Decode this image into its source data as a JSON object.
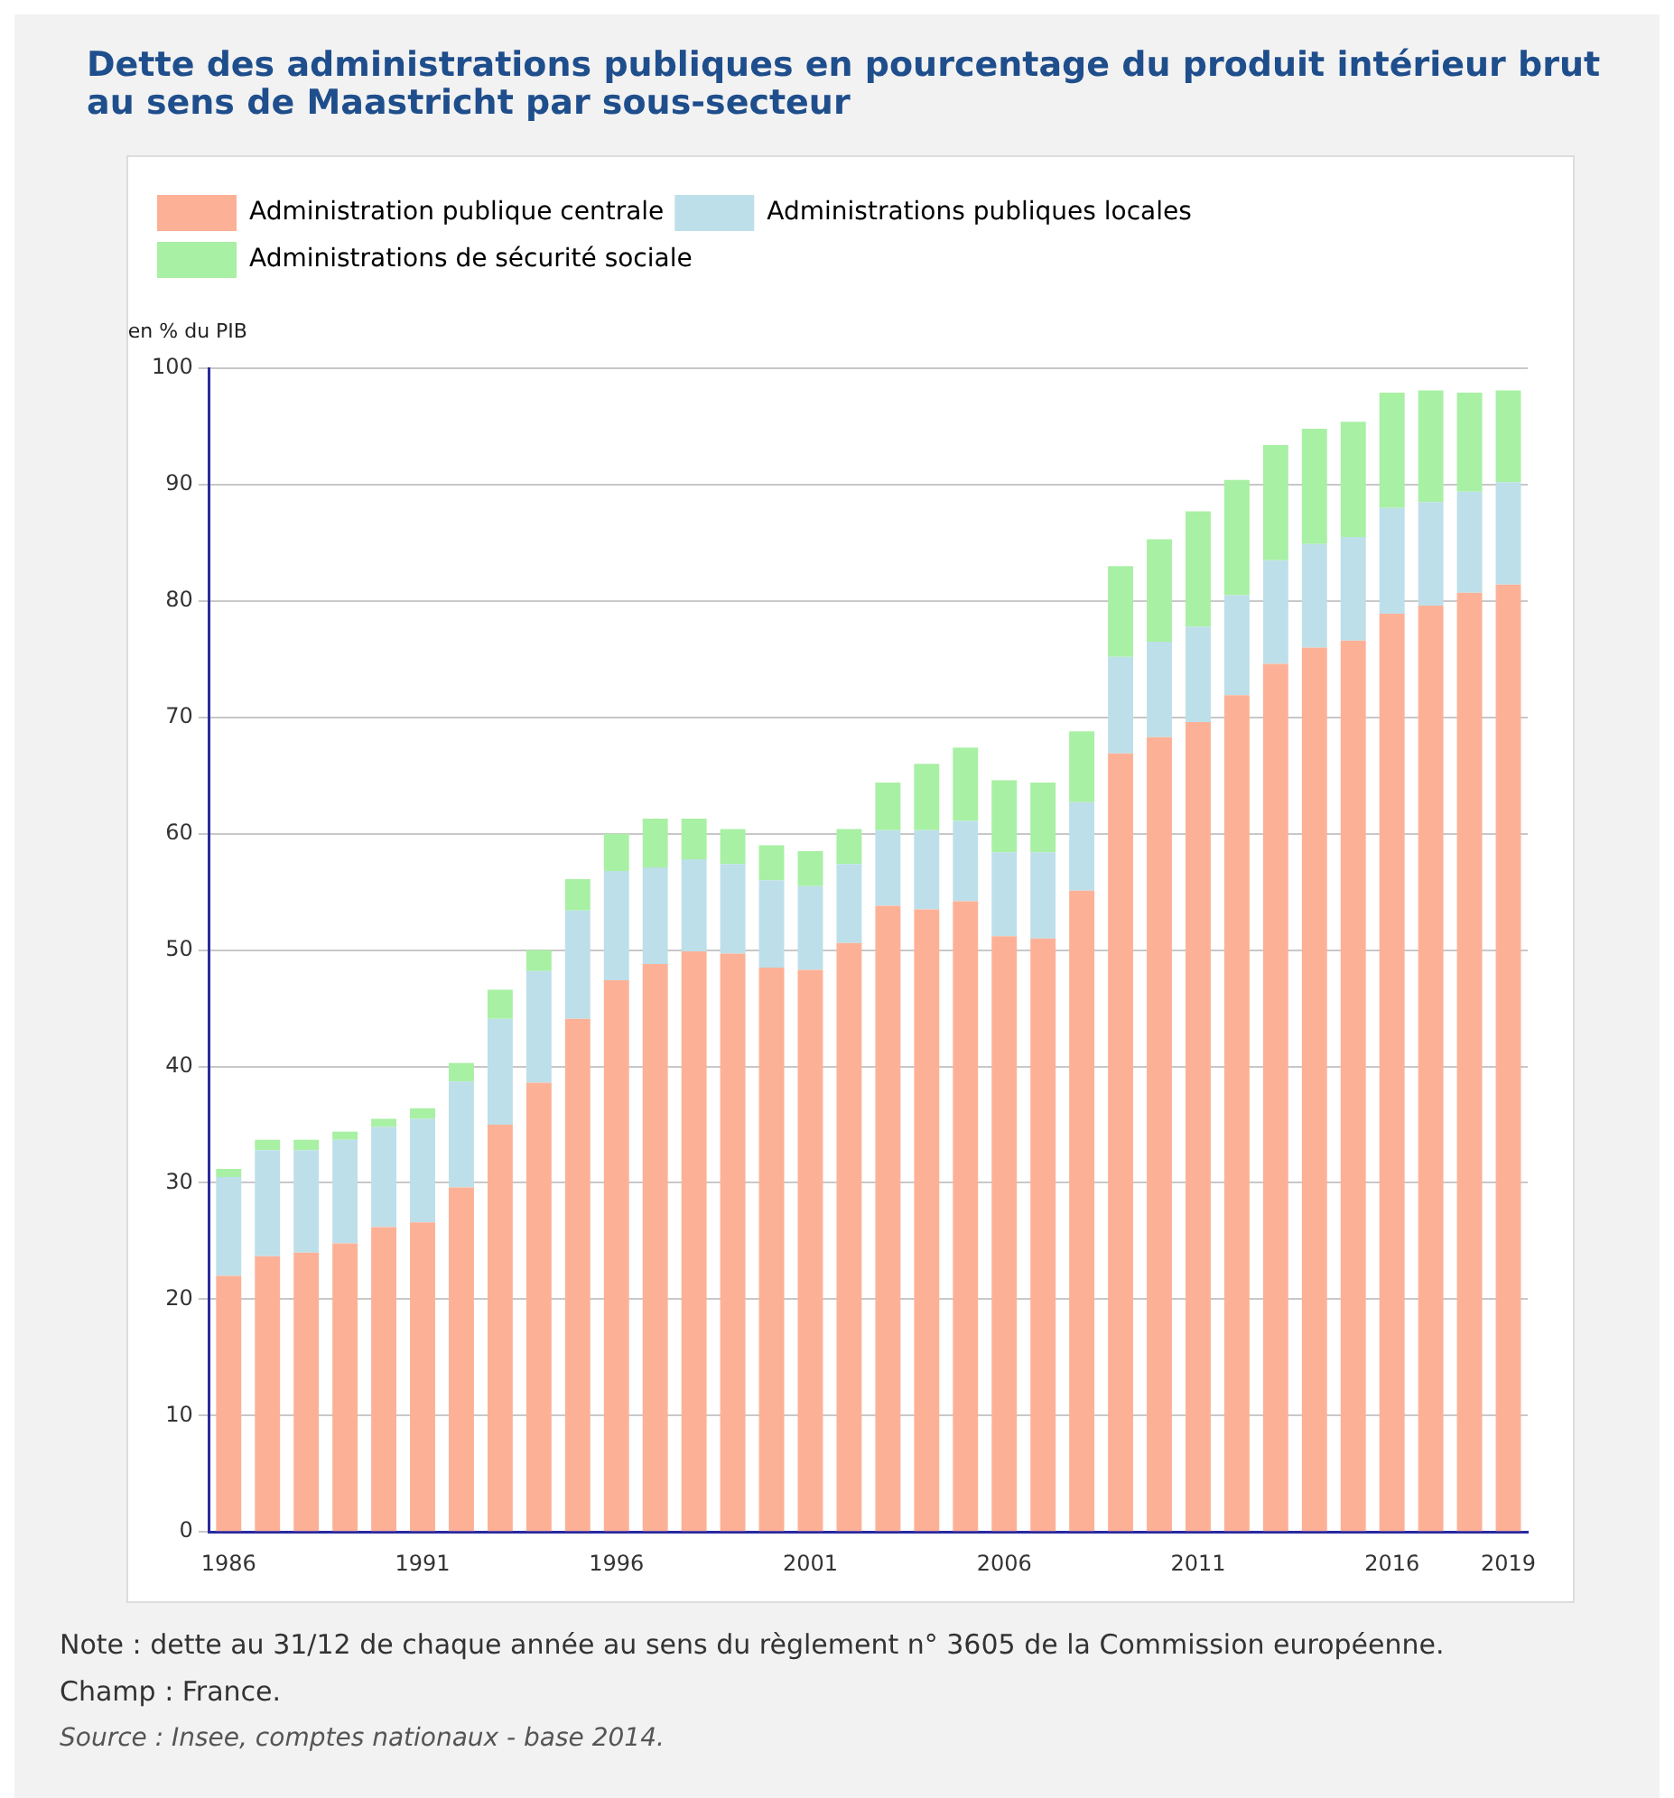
{
  "chart_data": {
    "type": "bar",
    "title": "Dette des administrations publiques en pourcentage du produit intérieur brut au sens de Maastricht par sous-secteur",
    "ylabel": "en % du PIB",
    "categories": [
      "1986",
      null,
      null,
      null,
      null,
      "1991",
      null,
      null,
      null,
      null,
      "1996",
      null,
      null,
      null,
      null,
      "2001",
      null,
      null,
      null,
      null,
      "2006",
      null,
      null,
      null,
      null,
      "2011",
      null,
      null,
      null,
      null,
      "2016",
      null,
      null,
      "2019"
    ],
    "series": [
      {
        "name": "Administration publique centrale",
        "color": "#fcb196",
        "values": [
          22,
          23.7,
          24,
          24.8,
          26.2,
          26.6,
          29.6,
          35,
          38.6,
          44.1,
          47.4,
          48.8,
          49.9,
          49.7,
          48.5,
          48.3,
          50.6,
          53.8,
          53.5,
          54.2,
          51.2,
          51,
          55.1,
          66.9,
          68.3,
          69.6,
          71.9,
          74.6,
          76,
          76.6,
          78.9,
          79.6,
          80.7,
          81.4
        ]
      },
      {
        "name": "Administrations publiques locales",
        "color": "#bddfe9",
        "values": [
          8.5,
          9.1,
          8.8,
          8.9,
          8.6,
          8.9,
          9.1,
          9.1,
          9.6,
          9.3,
          9.4,
          8.3,
          7.9,
          7.7,
          7.5,
          7.2,
          6.8,
          6.5,
          6.8,
          6.9,
          7.2,
          7.4,
          7.6,
          8.3,
          8.2,
          8.2,
          8.6,
          8.9,
          8.9,
          8.9,
          9.1,
          8.9,
          8.7,
          8.8
        ]
      },
      {
        "name": "Administrations de sécurité sociale",
        "color": "#a8f0a4",
        "values": [
          0.7,
          0.9,
          0.9,
          0.7,
          0.7,
          0.9,
          1.6,
          2.5,
          1.8,
          2.7,
          3.2,
          4.2,
          3.5,
          3,
          3,
          3,
          3,
          4.1,
          5.7,
          6.3,
          6.2,
          6,
          6.1,
          7.8,
          8.8,
          9.9,
          9.9,
          9.9,
          9.9,
          9.9,
          9.9,
          9.6,
          8.5,
          7.9
        ]
      }
    ],
    "stacked": true,
    "ylim": [
      0,
      100
    ],
    "yticks": [
      0,
      10,
      20,
      30,
      40,
      50,
      60,
      70,
      80,
      90,
      100
    ],
    "grid": "y",
    "legend": "top left",
    "annotations": [
      "Note : dette au 31/12 de chaque année au sens du règlement n° 3605 de la Commission européenne.",
      "Champ : France.",
      "Source : Insee, comptes nationaux - base 2014."
    ]
  }
}
